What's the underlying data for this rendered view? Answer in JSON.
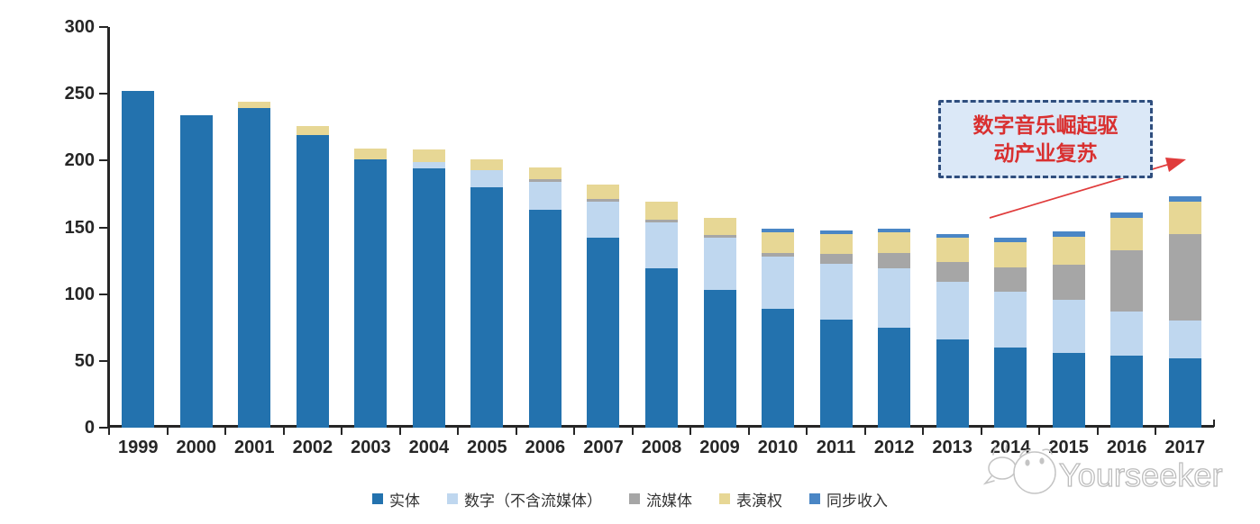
{
  "chart_data": {
    "type": "bar",
    "stacked": true,
    "title": "",
    "xlabel": "",
    "ylabel": "",
    "categories": [
      "1999",
      "2000",
      "2001",
      "2002",
      "2003",
      "2004",
      "2005",
      "2006",
      "2007",
      "2008",
      "2009",
      "2010",
      "2011",
      "2012",
      "2013",
      "2014",
      "2015",
      "2016",
      "2017"
    ],
    "series": [
      {
        "name": "实体",
        "color": "#2372AE",
        "values": [
          252,
          234,
          239,
          219,
          201,
          194,
          180,
          163,
          142,
          119,
          103,
          89,
          81,
          75,
          66,
          60,
          56,
          54,
          52
        ]
      },
      {
        "name": "数字（不含流媒体）",
        "color": "#BFD7EF",
        "values": [
          0,
          0,
          0,
          0,
          0,
          5,
          13,
          21,
          27,
          35,
          39,
          39,
          42,
          44,
          43,
          42,
          40,
          33,
          28
        ]
      },
      {
        "name": "流媒体",
        "color": "#A6A6A6",
        "values": [
          0,
          0,
          0,
          0,
          0,
          0,
          0,
          2,
          2,
          2,
          2,
          3,
          7,
          12,
          15,
          18,
          26,
          46,
          65
        ]
      },
      {
        "name": "表演权",
        "color": "#E7D795",
        "values": [
          0,
          0,
          5,
          7,
          8,
          9,
          8,
          9,
          11,
          13,
          13,
          15,
          15,
          15,
          18,
          19,
          21,
          24,
          24
        ]
      },
      {
        "name": "同步收入",
        "color": "#4A86C5",
        "values": [
          0,
          0,
          0,
          0,
          0,
          0,
          0,
          0,
          0,
          0,
          0,
          3,
          3,
          3,
          3,
          3,
          4,
          4,
          4
        ]
      }
    ],
    "ylim": [
      0,
      300
    ],
    "yticks": [
      0,
      50,
      100,
      150,
      200,
      250,
      300
    ],
    "grid": false,
    "legend_position": "bottom",
    "axis_color": "#262626"
  },
  "annotation": {
    "line1": "数字音乐崛起驱",
    "line2": "动产业复苏",
    "text_color": "#D93030",
    "border_color": "#2F4E7E",
    "fill_color": "#DBE8F7",
    "arrow_color": "#E03C3C"
  },
  "watermark": {
    "text": "Yourseeker",
    "color": "#BDBDBD"
  }
}
